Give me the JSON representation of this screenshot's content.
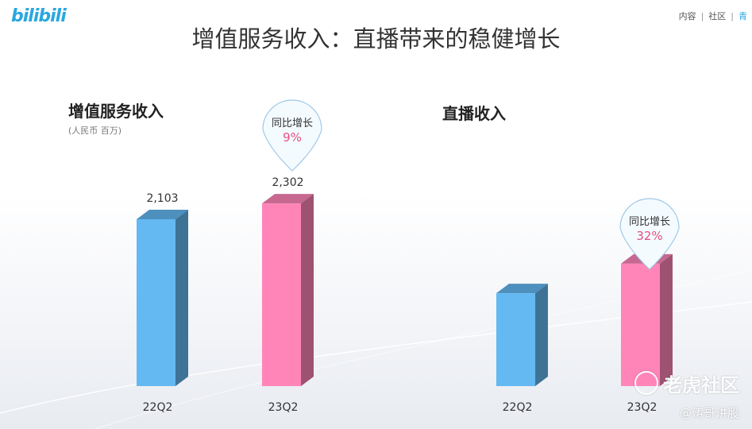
{
  "header": {
    "logo": "bilibili",
    "nav_items": [
      "内容",
      "社区"
    ],
    "nav_cut": "青"
  },
  "title": "增值服务收入：直播带来的稳健增长",
  "watermark": {
    "brand": "老虎社区",
    "author": "@涛哥讲股"
  },
  "colors": {
    "q22": "#64b9f2",
    "q23": "#ff85b8",
    "badge_text": "#e4507f"
  },
  "chart_data": [
    {
      "type": "bar",
      "title": "增值服务收入",
      "unit": "(人民币 百万)",
      "categories": [
        "22Q2",
        "23Q2"
      ],
      "values": [
        2103,
        2302
      ],
      "value_labels": [
        "2,103",
        "2,302"
      ],
      "yoy_label": "同比增长",
      "yoy_value": "9%"
    },
    {
      "type": "bar",
      "title": "直播收入",
      "categories": [
        "22Q2",
        "23Q2"
      ],
      "values": [
        1170,
        1544
      ],
      "value_labels": [
        "",
        ""
      ],
      "yoy_label": "同比增长",
      "yoy_value": "32%"
    }
  ]
}
